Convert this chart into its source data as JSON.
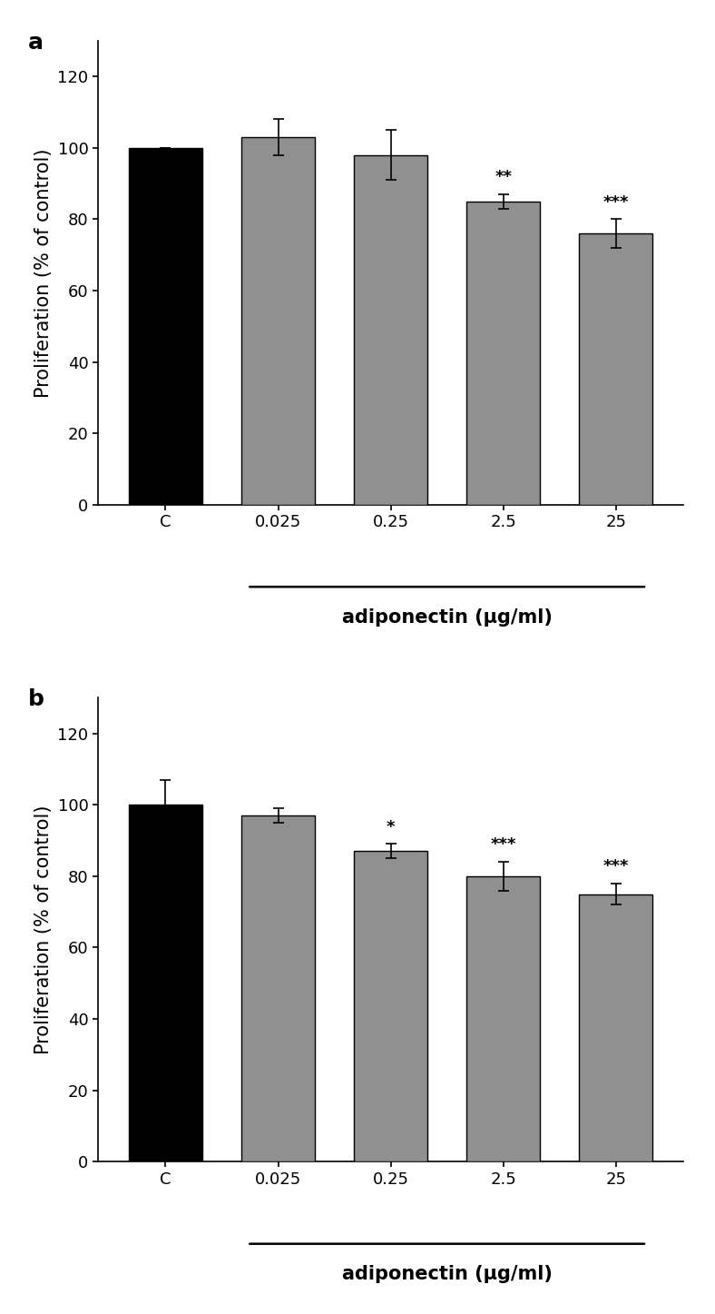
{
  "panel_a": {
    "label": "a",
    "categories": [
      "C",
      "0.025",
      "0.25",
      "2.5",
      "25"
    ],
    "values": [
      100,
      103,
      98,
      85,
      76
    ],
    "errors": [
      0,
      5,
      7,
      2,
      4
    ],
    "bar_colors": [
      "#000000",
      "#909090",
      "#909090",
      "#909090",
      "#909090"
    ],
    "significance": [
      "",
      "",
      "",
      "**",
      "***"
    ],
    "ylabel": "Proliferation (% of control)",
    "xlabel_line_cats": [
      "0.025",
      "0.25",
      "2.5",
      "25"
    ],
    "xlabel_label": "adiponectin (μg/ml)",
    "ylim": [
      0,
      130
    ],
    "yticks": [
      0,
      20,
      40,
      60,
      80,
      100,
      120
    ]
  },
  "panel_b": {
    "label": "b",
    "categories": [
      "C",
      "0.025",
      "0.25",
      "2.5",
      "25"
    ],
    "values": [
      100,
      97,
      87,
      80,
      75
    ],
    "errors": [
      7,
      2,
      2,
      4,
      3
    ],
    "bar_colors": [
      "#000000",
      "#909090",
      "#909090",
      "#909090",
      "#909090"
    ],
    "significance": [
      "",
      "",
      "*",
      "***",
      "***"
    ],
    "ylabel": "Proliferation (% of control)",
    "xlabel_label": "adiponectin (μg/ml)",
    "xlabel_line_cats": [
      "0.025",
      "0.25",
      "2.5",
      "25"
    ],
    "ylim": [
      0,
      130
    ],
    "yticks": [
      0,
      20,
      40,
      60,
      80,
      100,
      120
    ]
  },
  "bar_width": 0.65,
  "fig_width": 7.88,
  "fig_height": 14.47,
  "sig_fontsize": 13,
  "label_fontsize": 15,
  "tick_fontsize": 13,
  "panel_label_fontsize": 18
}
